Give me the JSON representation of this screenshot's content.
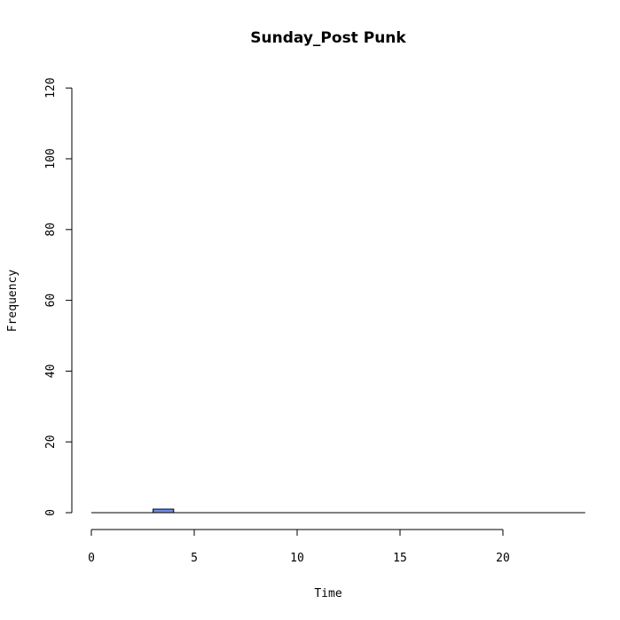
{
  "chart_data": {
    "type": "bar",
    "title": "Sunday_Post Punk",
    "xlabel": "Time",
    "ylabel": "Frequency",
    "xlim": [
      0,
      24
    ],
    "ylim": [
      0,
      120
    ],
    "x_ticks": [
      "0",
      "5",
      "10",
      "15",
      "20"
    ],
    "y_ticks": [
      "0",
      "20",
      "40",
      "60",
      "80",
      "100",
      "120"
    ],
    "bin_width": 1,
    "bins_start": [
      0,
      1,
      2,
      3,
      4,
      5,
      6,
      7,
      8,
      9,
      10,
      11,
      12,
      13,
      14,
      15,
      16,
      17,
      18,
      19,
      20,
      21,
      22,
      23
    ],
    "values": [
      0,
      0,
      0,
      1,
      0,
      0,
      0,
      0,
      0,
      0,
      0,
      0,
      0,
      0,
      0,
      0,
      0,
      0,
      0,
      0,
      0,
      0,
      0,
      0
    ],
    "bar_color": "#6d8cf0",
    "grid": false
  }
}
